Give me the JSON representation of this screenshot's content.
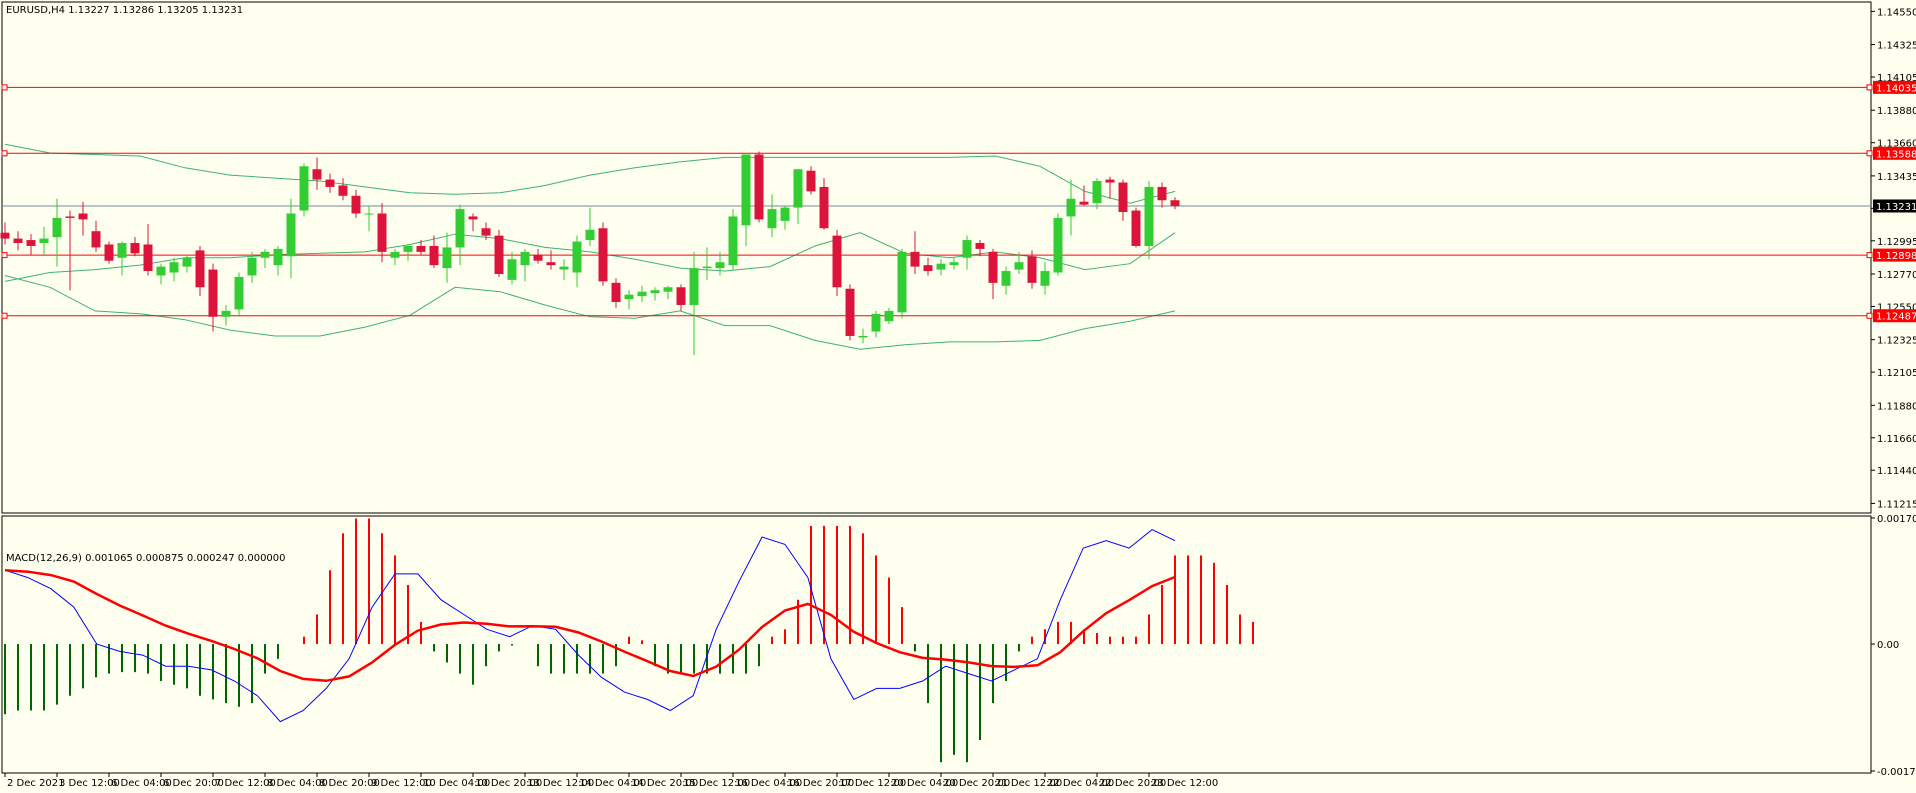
{
  "main": {
    "header": "EURUSD,H4  1.13227 1.13286 1.13205 1.13231",
    "y_ticks": [
      "1.14550",
      "1.14325",
      "1.14105",
      "1.13880",
      "1.13660",
      "1.13435",
      "1.13215",
      "1.12995",
      "1.12770",
      "1.12550",
      "1.12325",
      "1.12105",
      "1.11880",
      "1.11660",
      "1.11440",
      "1.11215"
    ],
    "price_tag": "1.13231",
    "hlines": [
      "1.14035",
      "1.13588",
      "1.12898",
      "1.12487"
    ]
  },
  "macd": {
    "header": "MACD(12,26,9) 0.001065 0.000875 0.000247 0.000000",
    "y_ticks": [
      "0.001707",
      "0.00",
      "-0.001719"
    ]
  },
  "x_ticks": [
    "2 Dec 2021",
    "3 Dec 12:00",
    "6 Dec 04:00",
    "6 Dec 20:00",
    "7 Dec 12:00",
    "8 Dec 04:00",
    "8 Dec 20:00",
    "9 Dec 12:00",
    "10 Dec 04:00",
    "10 Dec 20:00",
    "13 Dec 12:00",
    "14 Dec 04:00",
    "14 Dec 20:00",
    "15 Dec 12:00",
    "16 Dec 04:00",
    "16 Dec 20:00",
    "17 Dec 12:00",
    "20 Dec 04:00",
    "20 Dec 20:00",
    "21 Dec 12:00",
    "22 Dec 04:00",
    "22 Dec 20:00",
    "23 Dec 12:00"
  ],
  "colors": {
    "bull": "#32CD32",
    "bear": "#DC143C",
    "band": "#3CB371",
    "level": "#FF0000",
    "macd_line": "#0000FF",
    "signal": "#FF0000",
    "hist_pos": "#FF0000",
    "hist_neg": "#006400"
  },
  "chart_data": [
    {
      "type": "candlestick",
      "title": "EURUSD,H4",
      "ylim": [
        1.1115,
        1.146
      ],
      "current_price": 1.13231,
      "levels": [
        1.14035,
        1.13588,
        1.12898,
        1.12487
      ],
      "candles": [
        [
          1.1305,
          1.1312,
          1.1297,
          1.1301
        ],
        [
          1.1301,
          1.1306,
          1.1293,
          1.1298
        ],
        [
          1.13,
          1.1304,
          1.129,
          1.1296
        ],
        [
          1.1298,
          1.1309,
          1.129,
          1.1301
        ],
        [
          1.1302,
          1.1328,
          1.1282,
          1.1315
        ],
        [
          1.1316,
          1.132,
          1.1266,
          1.1315
        ],
        [
          1.1318,
          1.1326,
          1.1303,
          1.1314
        ],
        [
          1.1306,
          1.1313,
          1.1292,
          1.1295
        ],
        [
          1.1297,
          1.1299,
          1.1284,
          1.1286
        ],
        [
          1.1288,
          1.1299,
          1.1276,
          1.1298
        ],
        [
          1.1298,
          1.1302,
          1.1289,
          1.1291
        ],
        [
          1.1297,
          1.1311,
          1.1276,
          1.1279
        ],
        [
          1.1276,
          1.1284,
          1.127,
          1.1282
        ],
        [
          1.1278,
          1.1288,
          1.1272,
          1.1285
        ],
        [
          1.1282,
          1.129,
          1.1278,
          1.1288
        ],
        [
          1.1293,
          1.1296,
          1.1262,
          1.1268
        ],
        [
          1.128,
          1.1284,
          1.1238,
          1.1248
        ],
        [
          1.1248,
          1.1256,
          1.1242,
          1.1252
        ],
        [
          1.1253,
          1.1278,
          1.1248,
          1.1275
        ],
        [
          1.1276,
          1.1292,
          1.1271,
          1.1288
        ],
        [
          1.1288,
          1.1294,
          1.1281,
          1.1292
        ],
        [
          1.1283,
          1.1296,
          1.1276,
          1.1294
        ],
        [
          1.1289,
          1.1328,
          1.1274,
          1.1318
        ],
        [
          1.132,
          1.1352,
          1.1316,
          1.135
        ],
        [
          1.1348,
          1.1356,
          1.1334,
          1.1341
        ],
        [
          1.1341,
          1.1345,
          1.1332,
          1.1336
        ],
        [
          1.1337,
          1.1342,
          1.1327,
          1.133
        ],
        [
          1.133,
          1.1334,
          1.1315,
          1.1318
        ],
        [
          1.1318,
          1.1323,
          1.1306,
          1.1318
        ],
        [
          1.1318,
          1.1325,
          1.1285,
          1.1292
        ],
        [
          1.1288,
          1.1294,
          1.1283,
          1.1292
        ],
        [
          1.1292,
          1.1297,
          1.1286,
          1.1296
        ],
        [
          1.1296,
          1.13,
          1.129,
          1.1292
        ],
        [
          1.1296,
          1.1303,
          1.1281,
          1.1283
        ],
        [
          1.1281,
          1.1305,
          1.1271,
          1.1295
        ],
        [
          1.1295,
          1.1324,
          1.1283,
          1.1321
        ],
        [
          1.1316,
          1.1318,
          1.1306,
          1.1314
        ],
        [
          1.1308,
          1.1312,
          1.13,
          1.1303
        ],
        [
          1.1303,
          1.1307,
          1.1275,
          1.1277
        ],
        [
          1.1273,
          1.1292,
          1.127,
          1.1287
        ],
        [
          1.1283,
          1.1294,
          1.1272,
          1.1292
        ],
        [
          1.129,
          1.1294,
          1.1284,
          1.1286
        ],
        [
          1.1285,
          1.1293,
          1.128,
          1.1283
        ],
        [
          1.128,
          1.1287,
          1.1273,
          1.1282
        ],
        [
          1.1278,
          1.1303,
          1.1268,
          1.1299
        ],
        [
          1.13,
          1.1322,
          1.1296,
          1.1307
        ],
        [
          1.1308,
          1.1312,
          1.1269,
          1.1272
        ],
        [
          1.1271,
          1.1274,
          1.1254,
          1.1258
        ],
        [
          1.126,
          1.1266,
          1.1253,
          1.1263
        ],
        [
          1.1262,
          1.1269,
          1.1258,
          1.1265
        ],
        [
          1.1264,
          1.1268,
          1.1259,
          1.1266
        ],
        [
          1.1265,
          1.1269,
          1.126,
          1.1268
        ],
        [
          1.1268,
          1.127,
          1.1252,
          1.1256
        ],
        [
          1.1256,
          1.1292,
          1.1222,
          1.1281
        ],
        [
          1.1281,
          1.1295,
          1.1273,
          1.1282
        ],
        [
          1.1281,
          1.1292,
          1.1276,
          1.1285
        ],
        [
          1.1283,
          1.1321,
          1.128,
          1.1316
        ],
        [
          1.131,
          1.1358,
          1.1296,
          1.1358
        ],
        [
          1.1358,
          1.136,
          1.1312,
          1.1314
        ],
        [
          1.1308,
          1.1331,
          1.1302,
          1.1321
        ],
        [
          1.1313,
          1.1323,
          1.1307,
          1.1322
        ],
        [
          1.1322,
          1.1348,
          1.1311,
          1.1348
        ],
        [
          1.1347,
          1.135,
          1.1331,
          1.1333
        ],
        [
          1.1336,
          1.1342,
          1.1307,
          1.1308
        ],
        [
          1.1303,
          1.1307,
          1.1262,
          1.1268
        ],
        [
          1.1267,
          1.127,
          1.1232,
          1.1235
        ],
        [
          1.1234,
          1.124,
          1.123,
          1.1235
        ],
        [
          1.1238,
          1.1252,
          1.1234,
          1.125
        ],
        [
          1.1245,
          1.1254,
          1.1243,
          1.1252
        ],
        [
          1.1251,
          1.1294,
          1.1247,
          1.1292
        ],
        [
          1.1292,
          1.1306,
          1.1277,
          1.1282
        ],
        [
          1.1283,
          1.1288,
          1.1276,
          1.1279
        ],
        [
          1.128,
          1.1287,
          1.1276,
          1.1284
        ],
        [
          1.1283,
          1.1288,
          1.128,
          1.1285
        ],
        [
          1.1288,
          1.1303,
          1.128,
          1.13
        ],
        [
          1.1298,
          1.13,
          1.1289,
          1.1294
        ],
        [
          1.1292,
          1.1294,
          1.126,
          1.1271
        ],
        [
          1.1269,
          1.1282,
          1.1263,
          1.1279
        ],
        [
          1.128,
          1.1292,
          1.1277,
          1.1285
        ],
        [
          1.1289,
          1.1293,
          1.1267,
          1.1271
        ],
        [
          1.1269,
          1.1285,
          1.1263,
          1.1279
        ],
        [
          1.1278,
          1.1318,
          1.1276,
          1.1315
        ],
        [
          1.1316,
          1.1341,
          1.1303,
          1.1328
        ],
        [
          1.1326,
          1.1337,
          1.1323,
          1.1324
        ],
        [
          1.1325,
          1.1342,
          1.1321,
          1.134
        ],
        [
          1.1341,
          1.1343,
          1.1328,
          1.1339
        ],
        [
          1.1339,
          1.1341,
          1.1313,
          1.1319
        ],
        [
          1.132,
          1.1322,
          1.1295,
          1.1296
        ],
        [
          1.1296,
          1.134,
          1.1287,
          1.1336
        ],
        [
          1.1336,
          1.1339,
          1.1322,
          1.1327
        ],
        [
          1.1327,
          1.1329,
          1.1321,
          1.1323
        ]
      ],
      "bollinger_upper": [
        1.1365,
        1.1359,
        1.1358,
        1.1357,
        1.1349,
        1.1344,
        1.1342,
        1.134,
        1.1336,
        1.1332,
        1.1331,
        1.1332,
        1.1337,
        1.1344,
        1.1349,
        1.1353,
        1.1356,
        1.1356,
        1.1356,
        1.1356,
        1.1356,
        1.1356,
        1.1357,
        1.135,
        1.1333,
        1.1325,
        1.1333
      ],
      "bollinger_mid": [
        1.1272,
        1.1278,
        1.128,
        1.1283,
        1.1288,
        1.1288,
        1.129,
        1.1291,
        1.1292,
        1.1297,
        1.1304,
        1.1301,
        1.1295,
        1.1292,
        1.1287,
        1.1281,
        1.1279,
        1.1282,
        1.1296,
        1.1305,
        1.1291,
        1.1288,
        1.1292,
        1.1288,
        1.128,
        1.1284,
        1.1305
      ],
      "bollinger_lower": [
        1.1276,
        1.1268,
        1.1252,
        1.125,
        1.1246,
        1.1239,
        1.1235,
        1.1235,
        1.1241,
        1.1249,
        1.1268,
        1.1265,
        1.1256,
        1.1248,
        1.1247,
        1.1252,
        1.1242,
        1.1242,
        1.1232,
        1.1226,
        1.1229,
        1.1231,
        1.1231,
        1.1232,
        1.124,
        1.1245,
        1.1252
      ]
    },
    {
      "type": "macd",
      "title": "MACD(12,26,9)",
      "ylim": [
        -0.001719,
        0.001707
      ],
      "values": [
        0.001065,
        0.000875,
        0.000247,
        0.0
      ],
      "histogram": [
        -0.00095,
        -0.0009,
        -0.0009,
        -0.0009,
        -0.00082,
        -0.0007,
        -0.0006,
        -0.00045,
        -0.0004,
        -0.00038,
        -0.00038,
        -0.0004,
        -0.0005,
        -0.00055,
        -0.0006,
        -0.0007,
        -0.00075,
        -0.0008,
        -0.00085,
        -0.0008,
        -0.0004,
        -0.0002,
        0.0,
        0.0001,
        0.0004,
        0.001,
        0.0015,
        0.0017,
        0.0017,
        0.0015,
        0.0012,
        0.0008,
        0.0003,
        -0.0001,
        -0.00025,
        -0.0004,
        -0.00055,
        -0.0003,
        -0.0001,
        -2e-05,
        0.0,
        -0.0003,
        -0.0004,
        -0.0004,
        -0.0004,
        -0.0004,
        -0.0004,
        -0.0003,
        0.0001,
        5e-05,
        -0.0003,
        -0.0004,
        -0.0004,
        -0.0004,
        -0.0004,
        -0.0004,
        -0.0004,
        -0.0004,
        -0.0003,
        0.0001,
        0.0002,
        0.0006,
        0.0016,
        0.0016,
        0.0016,
        0.0016,
        0.0015,
        0.0012,
        0.0009,
        0.0005,
        -0.0001,
        -0.0008,
        -0.0016,
        -0.0015,
        -0.0016,
        -0.0013,
        -0.0008,
        -0.0005,
        -0.0001,
        0.0001,
        0.0002,
        0.0003,
        0.0003,
        0.0002,
        0.00015,
        0.0001,
        0.0001,
        0.0001,
        0.0004,
        0.0008,
        0.0012,
        0.0012,
        0.0012,
        0.0011,
        0.0008,
        0.0004,
        0.0003
      ],
      "macd_line": [
        0.001,
        0.0009,
        0.00075,
        0.0005,
        0.0,
        -0.0001,
        -0.00015,
        -0.0003,
        -0.0003,
        -0.00035,
        -0.0005,
        -0.0007,
        -0.00105,
        -0.0009,
        -0.0006,
        -0.0002,
        0.0005,
        0.00095,
        0.00095,
        0.0006,
        0.0004,
        0.0002,
        0.0001,
        0.00025,
        0.0002,
        -0.00015,
        -0.00045,
        -0.00065,
        -0.00075,
        -0.0009,
        -0.0007,
        0.0002,
        0.00085,
        0.00145,
        0.00135,
        0.0009,
        -0.0002,
        -0.00075,
        -0.0006,
        -0.0006,
        -0.0005,
        -0.0003,
        -0.0004,
        -0.0005,
        -0.00035,
        -0.0002,
        0.0006,
        0.0013,
        0.0014,
        0.0013,
        0.00155,
        0.0014
      ]
    }
  ]
}
